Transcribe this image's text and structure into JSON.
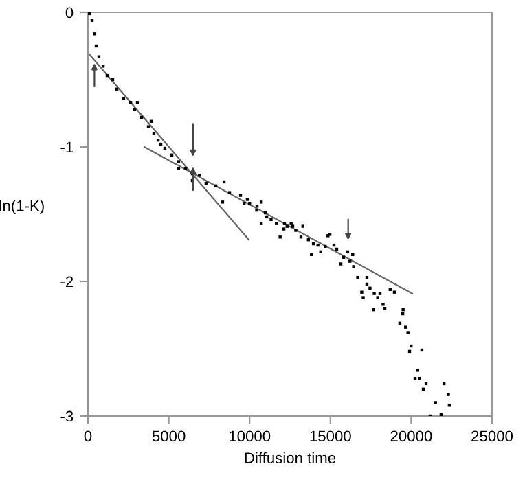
{
  "chart_data": {
    "type": "scatter",
    "xlabel": "Diffusion time",
    "ylabel": "ln(1-K)",
    "xlim": [
      0,
      25000
    ],
    "ylim": [
      -3,
      0
    ],
    "xticks": [
      0,
      5000,
      10000,
      15000,
      20000,
      25000
    ],
    "yticks": [
      0,
      -1,
      -2,
      -3
    ],
    "grid": false,
    "legend": false,
    "series": [
      {
        "marker": "square",
        "color": "#000000",
        "x": [
          85,
          255,
          420,
          510,
          680,
          940,
          1190,
          1530,
          1790,
          2210,
          2640,
          2890,
          3060,
          3320,
          3740,
          3910,
          4080,
          4340,
          4510,
          4760,
          5190,
          5610,
          5610,
          6040,
          6460,
          6460,
          6890,
          7310,
          7910,
          8330,
          8420,
          8760,
          9440,
          9660,
          9860,
          10000,
          10440,
          10460,
          10720,
          10720,
          10970,
          11060,
          11330,
          11660,
          11890,
          12120,
          12160,
          12320,
          12570,
          12670,
          12860,
          13180,
          13300,
          13640,
          13830,
          13950,
          14230,
          14400,
          14680,
          14850,
          14970,
          15220,
          15390,
          15650,
          15820,
          16070,
          16210,
          16380,
          16440,
          16690,
          16940,
          17030,
          17260,
          17260,
          17450,
          17680,
          17710,
          17930,
          18070,
          18260,
          18370,
          18700,
          18960,
          19300,
          19480,
          19500,
          19650,
          19800,
          19900,
          19990,
          20240,
          20400,
          20500,
          20660,
          20750,
          20920,
          21170,
          21500,
          21850,
          22030,
          22300,
          22360
        ],
        "values": [
          -0.01,
          -0.06,
          -0.16,
          -0.25,
          -0.33,
          -0.4,
          -0.47,
          -0.5,
          -0.57,
          -0.64,
          -0.67,
          -0.72,
          -0.67,
          -0.78,
          -0.85,
          -0.81,
          -0.9,
          -0.95,
          -0.98,
          -1.01,
          -1.06,
          -1.11,
          -1.16,
          -1.16,
          -1.2,
          -1.25,
          -1.21,
          -1.27,
          -1.29,
          -1.41,
          -1.26,
          -1.34,
          -1.36,
          -1.42,
          -1.39,
          -1.42,
          -1.47,
          -1.44,
          -1.57,
          -1.41,
          -1.49,
          -1.52,
          -1.54,
          -1.57,
          -1.67,
          -1.61,
          -1.57,
          -1.59,
          -1.57,
          -1.59,
          -1.62,
          -1.67,
          -1.59,
          -1.69,
          -1.8,
          -1.72,
          -1.73,
          -1.78,
          -1.74,
          -1.66,
          -1.65,
          -1.73,
          -1.76,
          -1.87,
          -1.82,
          -1.78,
          -1.85,
          -1.8,
          -1.89,
          -1.97,
          -2.08,
          -2.12,
          -1.97,
          -2.02,
          -2.05,
          -2.21,
          -2.09,
          -2.12,
          -2.09,
          -2.17,
          -2.2,
          -2.06,
          -2.08,
          -2.31,
          -2.24,
          -2.21,
          -2.34,
          -2.38,
          -2.52,
          -2.48,
          -2.72,
          -2.66,
          -2.72,
          -2.51,
          -2.8,
          -2.76,
          -3.0,
          -2.9,
          -2.99,
          -2.76,
          -2.84,
          -2.92
        ]
      },
      {
        "type": "line",
        "color": "#666666",
        "x": [
          0,
          9950
        ],
        "values": [
          -0.3,
          -1.69
        ]
      },
      {
        "type": "line",
        "color": "#666666",
        "x": [
          3490,
          20070
        ],
        "values": [
          -1.0,
          -2.09
        ]
      }
    ]
  }
}
